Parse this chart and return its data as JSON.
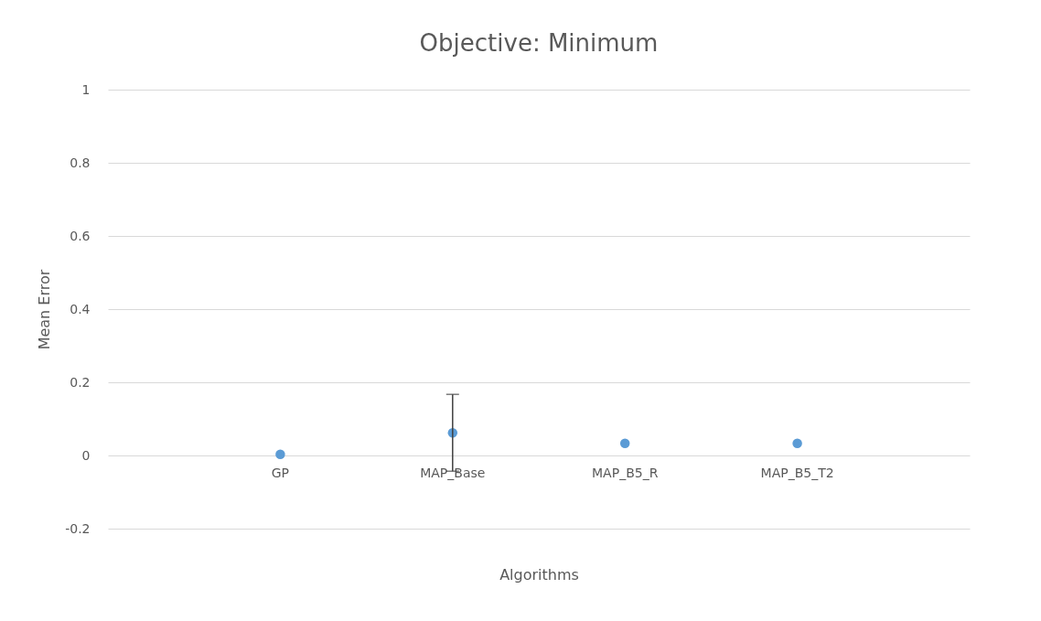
{
  "chart_data": {
    "type": "scatter",
    "title": "Objective: Minimum",
    "xlabel": "Algorithms",
    "ylabel": "Mean Error",
    "categories": [
      "GP",
      "MAP_Base",
      "MAP_B5_R",
      "MAP_B5_T2"
    ],
    "series": [
      {
        "color": "#5b9bd5",
        "values": [
          0.003,
          0.062,
          0.033,
          0.033
        ],
        "errors": [
          null,
          0.105,
          null,
          null
        ]
      }
    ],
    "ylim": [
      -0.2,
      1
    ],
    "yticks": [
      -0.2,
      0,
      0.2,
      0.4,
      0.6,
      0.8,
      1
    ],
    "grid": "y",
    "marker": "circle"
  }
}
